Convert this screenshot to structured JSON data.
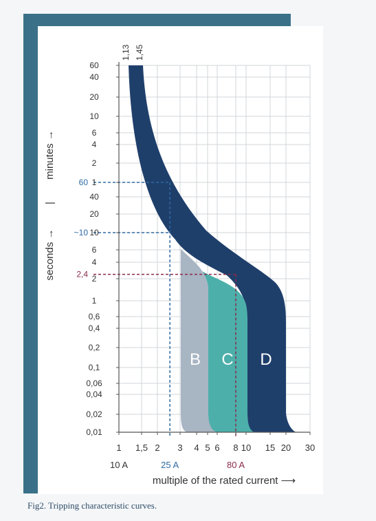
{
  "caption": "Fig2. Tripping characteristic curves.",
  "colors": {
    "frame": "#3a7189",
    "grid": "#d2d6da",
    "axis": "#555555",
    "curve_B": "#a8b5c3",
    "curve_C": "#4cafaa",
    "curve_D": "#1f3f6b",
    "band": "#1e3c64",
    "marker_blue": "#2e6aa3",
    "marker_red": "#8a2a4a"
  },
  "chart_data": {
    "type": "area",
    "xlabel": "multiple of the rated current",
    "x_scale": "log",
    "xlim": [
      1,
      30
    ],
    "x_ticks": [
      {
        "value": 1,
        "label": "1"
      },
      {
        "value": 1.5,
        "label": "1,5"
      },
      {
        "value": 2,
        "label": "2"
      },
      {
        "value": 3,
        "label": "3"
      },
      {
        "value": 4,
        "label": "4"
      },
      {
        "value": 5,
        "label": "5"
      },
      {
        "value": 6,
        "label": "6"
      },
      {
        "value": 8,
        "label": "8"
      },
      {
        "value": 10,
        "label": "10"
      },
      {
        "value": 15,
        "label": "15"
      },
      {
        "value": 20,
        "label": "20"
      },
      {
        "value": 30,
        "label": "30"
      }
    ],
    "top_labels": [
      {
        "value": 1.13,
        "label": "1,13"
      },
      {
        "value": 1.45,
        "label": "1,45"
      }
    ],
    "y_scale": "log",
    "ylabel_seconds": "seconds",
    "ylabel_minutes": "minutes",
    "ylabel_separator": "|",
    "y_ticks": [
      {
        "seconds": 0.01,
        "label": "0,01"
      },
      {
        "seconds": 0.02,
        "label": "0,02"
      },
      {
        "seconds": 0.04,
        "label": "0,04"
      },
      {
        "seconds": 0.06,
        "label": "0,06"
      },
      {
        "seconds": 0.1,
        "label": "0,1"
      },
      {
        "seconds": 0.2,
        "label": "0,2"
      },
      {
        "seconds": 0.4,
        "label": "0,4"
      },
      {
        "seconds": 0.6,
        "label": "0,6"
      },
      {
        "seconds": 1,
        "label": "1"
      },
      {
        "seconds": 2,
        "label": "2"
      },
      {
        "seconds": 4,
        "label": "4"
      },
      {
        "seconds": 6,
        "label": "6"
      },
      {
        "seconds": 10,
        "label": "10"
      },
      {
        "seconds": 20,
        "label": "20"
      },
      {
        "seconds": 40,
        "label": "40"
      },
      {
        "seconds": 60,
        "label": "1"
      },
      {
        "seconds": 120,
        "label": "2"
      },
      {
        "seconds": 240,
        "label": "4"
      },
      {
        "seconds": 360,
        "label": "6"
      },
      {
        "seconds": 600,
        "label": "10"
      },
      {
        "seconds": 1200,
        "label": "20"
      },
      {
        "seconds": 2400,
        "label": "40"
      },
      {
        "seconds": 3600,
        "label": "60"
      }
    ],
    "ylim_seconds": [
      0.01,
      3600
    ],
    "grid": true,
    "overload_band": [
      {
        "x": 1.13,
        "t": 3600
      },
      {
        "x": 1.45,
        "t": 3600
      }
    ],
    "curves": [
      {
        "name": "B",
        "trip_min": 3,
        "trip_max": 5
      },
      {
        "name": "C",
        "trip_min": 5,
        "trip_max": 10
      },
      {
        "name": "D",
        "trip_min": 10,
        "trip_max": 20
      }
    ],
    "markers": [
      {
        "label": "60",
        "seconds": 60,
        "x": 2.5,
        "color": "marker_blue"
      },
      {
        "label": "~10",
        "seconds": 10,
        "x": 2.5,
        "color": "marker_blue"
      },
      {
        "label": "2,4",
        "seconds": 2.4,
        "x": 8,
        "color": "marker_red"
      }
    ],
    "currents": [
      {
        "label": "10 A",
        "color": "dark"
      },
      {
        "label": "25 A",
        "color": "marker_blue",
        "x": 2.5
      },
      {
        "label": "80 A",
        "color": "marker_red",
        "x": 8
      }
    ]
  }
}
